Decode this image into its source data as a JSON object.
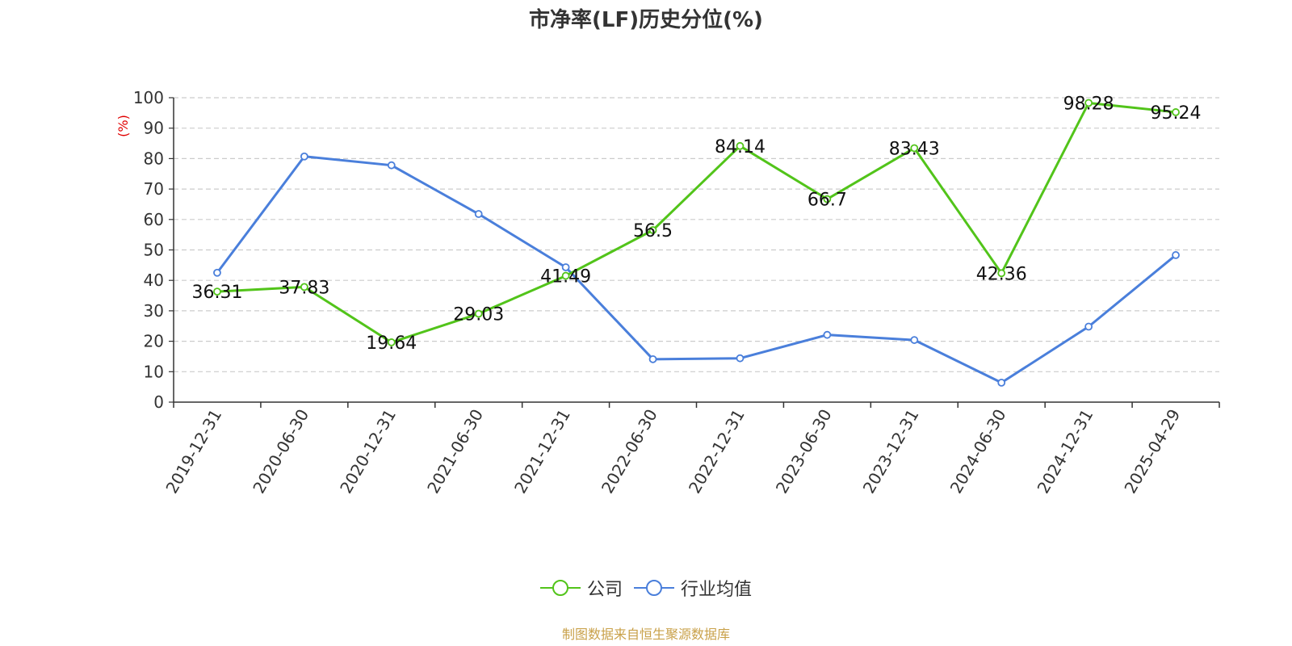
{
  "chart_data": {
    "type": "line",
    "title": "市净率(LF)历史分位(%)",
    "ylabel": "(%)",
    "xlabel": "",
    "ylim": [
      0,
      100
    ],
    "y_ticks": [
      0,
      10,
      20,
      30,
      40,
      50,
      60,
      70,
      80,
      90,
      100
    ],
    "categories": [
      "2019-12-31",
      "2020-06-30",
      "2020-12-31",
      "2021-06-30",
      "2021-12-31",
      "2022-06-30",
      "2022-12-31",
      "2023-06-30",
      "2023-12-31",
      "2024-06-30",
      "2024-12-31",
      "2025-04-29"
    ],
    "grid": true,
    "legend_position": "bottom",
    "series": [
      {
        "name": "公司",
        "color": "#52c41a",
        "values": [
          36.31,
          37.83,
          19.64,
          29.03,
          41.49,
          56.5,
          84.14,
          66.7,
          83.43,
          42.36,
          98.28,
          95.24
        ],
        "data_labels": [
          "36.31",
          "37.83",
          "19.64",
          "29.03",
          "41.49",
          "56.5",
          "84.14",
          "66.7",
          "83.43",
          "42.36",
          "98.28",
          "95.24"
        ]
      },
      {
        "name": "行业均值",
        "color": "#4a7fdb",
        "values": [
          42.5,
          80.7,
          77.8,
          61.8,
          44.3,
          14.1,
          14.4,
          22.1,
          20.4,
          6.4,
          24.8,
          48.3
        ]
      }
    ]
  },
  "footer": {
    "source": "制图数据来自恒生聚源数据库"
  }
}
